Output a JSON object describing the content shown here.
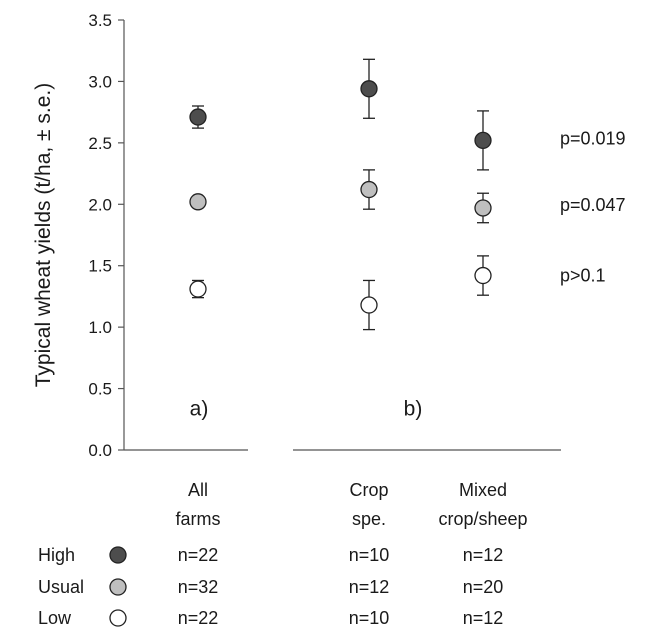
{
  "chart_data": {
    "type": "scatter",
    "ylabel": "Typical wheat yields (t/ha, ± s.e.)",
    "ylim": [
      0,
      3.5
    ],
    "yticks": [
      "0.0",
      "0.5",
      "1.0",
      "1.5",
      "2.0",
      "2.5",
      "3.0",
      "3.5"
    ],
    "grid": false,
    "panels": [
      {
        "label": "a)",
        "categories": [
          "All farms"
        ]
      },
      {
        "label": "b)",
        "categories": [
          "Crop spe.",
          "Mixed crop/sheep"
        ]
      }
    ],
    "category_labels": [
      {
        "line1": "All",
        "line2": "farms"
      },
      {
        "line1": "Crop",
        "line2": "spe."
      },
      {
        "line1": "Mixed",
        "line2": "crop/sheep"
      }
    ],
    "series": [
      {
        "name": "High",
        "color": "#4d4d4d",
        "values": [
          2.71,
          2.94,
          2.52
        ],
        "se": [
          0.09,
          0.24,
          0.24
        ],
        "n": [
          "n=22",
          "n=10",
          "n=12"
        ]
      },
      {
        "name": "Usual",
        "color": "#bfbfbf",
        "values": [
          2.02,
          2.12,
          1.97
        ],
        "se": [
          0.02,
          0.16,
          0.12
        ],
        "n": [
          "n=32",
          "n=12",
          "n=20"
        ]
      },
      {
        "name": "Low",
        "color": "#ffffff",
        "values": [
          1.31,
          1.18,
          1.42
        ],
        "se": [
          0.07,
          0.2,
          0.16
        ],
        "n": [
          "n=22",
          "n=10",
          "n=12"
        ]
      }
    ],
    "annotations": [
      "p=0.019",
      "p=0.047",
      "p>0.1"
    ],
    "legend_position": "bottom-left"
  }
}
